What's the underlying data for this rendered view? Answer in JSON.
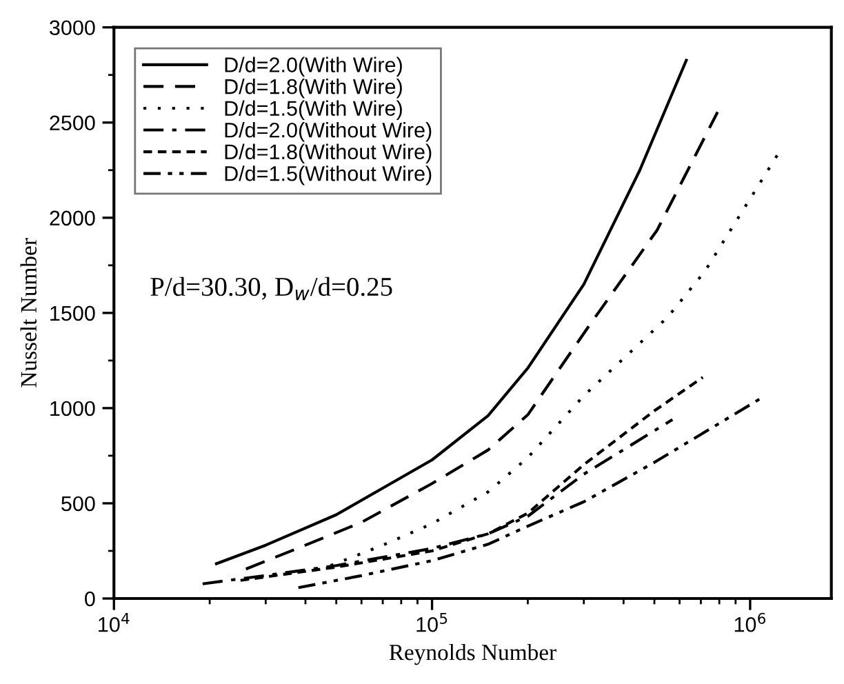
{
  "chart_data": {
    "type": "line",
    "xlabel": "Reynolds Number",
    "ylabel": "Nusselt Number",
    "log": "x",
    "xlim": [
      10000,
      1800000
    ],
    "xticks": [
      {
        "value": 10000,
        "label": "10$^{4}$"
      },
      {
        "value": 100000,
        "label": "10$^{5}$"
      },
      {
        "value": 1000000,
        "label": "10$^{6}$"
      }
    ],
    "ylim": [
      0,
      3000
    ],
    "yticks": [
      0,
      500,
      1000,
      1500,
      2000,
      2500,
      3000
    ],
    "legend": "top left",
    "grid": false,
    "marker": "none",
    "annotations": [
      "P/d=30.30, D$_{w}$/d=0.25"
    ],
    "series": [
      {
        "name": "D/d=2.0(With Wire)",
        "color": "#000000",
        "line_style": "solid",
        "x": [
          21000,
          30000,
          50000,
          100000,
          150000,
          200000,
          300000,
          450000,
          630000
        ],
        "values": [
          183,
          280,
          440,
          728,
          960,
          1210,
          1650,
          2250,
          2827
        ]
      },
      {
        "name": "D/d=1.8(With Wire)",
        "color": "#000000",
        "line_style": "dashed",
        "x": [
          26000,
          40000,
          60000,
          100000,
          150000,
          200000,
          310000,
          510000,
          790000
        ],
        "values": [
          155,
          280,
          400,
          604,
          780,
          965,
          1427,
          1935,
          2555
        ]
      },
      {
        "name": "D/d=1.5(With Wire)",
        "color": "#000000",
        "line_style": "dotted",
        "x": [
          48000,
          70000,
          100000,
          150000,
          200000,
          300000,
          550000,
          720000,
          1240000
        ],
        "values": [
          173,
          280,
          393,
          560,
          740,
          1065,
          1477,
          1718,
          2350
        ]
      },
      {
        "name": "D/d=2.0(Without Wire)",
        "color": "#000000",
        "line_style": "dashdot",
        "x": [
          19000,
          30000,
          50000,
          100000,
          150000,
          200000,
          300000,
          570000
        ],
        "values": [
          77,
          121,
          173,
          263,
          340,
          432,
          653,
          940
        ]
      },
      {
        "name": "D/d=1.8(Without Wire)",
        "color": "#000000",
        "line_style": "shortdash",
        "x": [
          25000,
          50000,
          100000,
          150000,
          200000,
          300000,
          500000,
          710000
        ],
        "values": [
          95,
          165,
          250,
          340,
          448,
          703,
          986,
          1162
        ]
      },
      {
        "name": "D/d=1.5(Without Wire)",
        "color": "#000000",
        "line_style": "dashdotdot",
        "x": [
          38000,
          60000,
          100000,
          150000,
          200000,
          300000,
          500000,
          1100000
        ],
        "values": [
          57,
          120,
          199,
          285,
          380,
          508,
          715,
          1059
        ]
      }
    ]
  }
}
